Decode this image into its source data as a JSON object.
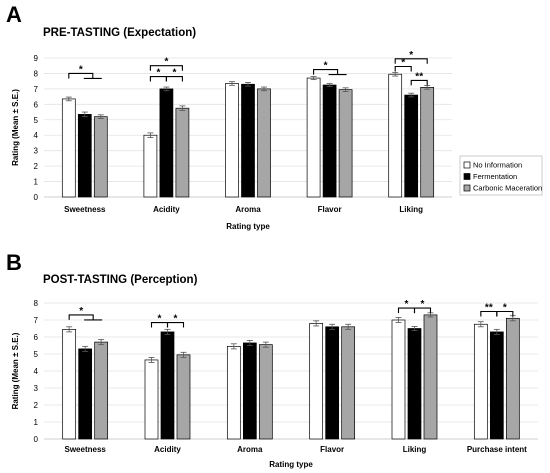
{
  "chart_data": [
    {
      "type": "bar",
      "panel_letter": "A",
      "title": "PRE-TASTING (Expectation)",
      "xlabel": "Rating type",
      "ylabel": "Rating (Mean ± S.E.)",
      "ylim": [
        0,
        9
      ],
      "yticks": [
        "0",
        "1",
        "2",
        "3",
        "4",
        "5",
        "6",
        "7",
        "8",
        "9"
      ],
      "grid": "horizontal",
      "legend": "right",
      "categories": [
        "Sweetness",
        "Acidity",
        "Aroma",
        "Flavor",
        "Liking"
      ],
      "series": [
        {
          "name": "No Information",
          "color": "#ffffff",
          "values": [
            6.35,
            4.0,
            7.35,
            7.7,
            7.95
          ],
          "errors": [
            0.12,
            0.15,
            0.12,
            0.1,
            0.12
          ]
        },
        {
          "name": "Fermentation",
          "color": "#000000",
          "values": [
            5.35,
            7.0,
            7.3,
            7.25,
            6.6
          ],
          "errors": [
            0.15,
            0.12,
            0.12,
            0.1,
            0.12
          ]
        },
        {
          "name": "Carbonic Maceration",
          "color": "#a6a6a6",
          "values": [
            5.2,
            5.75,
            7.0,
            6.95,
            7.1
          ],
          "errors": [
            0.12,
            0.15,
            0.12,
            0.12,
            0.12
          ]
        }
      ],
      "significance": [
        {
          "category": 0,
          "from": 0,
          "to": [
            1,
            2
          ],
          "label": "*",
          "level": 8.0
        },
        {
          "category": 1,
          "from": 0,
          "to": [
            1
          ],
          "label": "*",
          "level": 7.8
        },
        {
          "category": 1,
          "from": 1,
          "to": [
            2
          ],
          "label": "*",
          "level": 7.8
        },
        {
          "category": 1,
          "from": 0,
          "to": [
            2
          ],
          "label": "*",
          "level": 8.5
        },
        {
          "category": 3,
          "from": 0,
          "to": [
            1,
            2
          ],
          "label": "*",
          "level": 8.25
        },
        {
          "category": 4,
          "from": 0,
          "to": [
            1
          ],
          "label": "*",
          "level": 8.45
        },
        {
          "category": 4,
          "from": 1,
          "to": [
            2
          ],
          "label": "**",
          "level": 7.55
        },
        {
          "category": 4,
          "from": 0,
          "to": [
            2
          ],
          "label": "*",
          "level": 8.95
        }
      ]
    },
    {
      "type": "bar",
      "panel_letter": "B",
      "title": "POST-TASTING (Perception)",
      "xlabel": "Rating type",
      "ylabel": "Rating (Mean ± S.E.)",
      "ylim": [
        0,
        8
      ],
      "yticks": [
        "0",
        "1",
        "2",
        "3",
        "4",
        "5",
        "6",
        "7",
        "8"
      ],
      "grid": "horizontal",
      "legend": "none",
      "categories": [
        "Sweetness",
        "Acidity",
        "Aroma",
        "Flavor",
        "Liking",
        "Purchase intent"
      ],
      "series": [
        {
          "name": "No Information",
          "color": "#ffffff",
          "values": [
            6.45,
            4.65,
            5.45,
            6.8,
            7.0,
            6.75
          ],
          "errors": [
            0.15,
            0.15,
            0.15,
            0.15,
            0.15,
            0.15
          ]
        },
        {
          "name": "Fermentation",
          "color": "#000000",
          "values": [
            5.3,
            6.3,
            5.65,
            6.6,
            6.5,
            6.3
          ],
          "errors": [
            0.15,
            0.15,
            0.15,
            0.15,
            0.12,
            0.15
          ]
        },
        {
          "name": "Carbonic Maceration",
          "color": "#a6a6a6",
          "values": [
            5.7,
            4.95,
            5.55,
            6.6,
            7.3,
            7.1
          ],
          "errors": [
            0.15,
            0.15,
            0.15,
            0.15,
            0.12,
            0.15
          ]
        }
      ],
      "significance": [
        {
          "category": 0,
          "from": 0,
          "to": [
            1,
            2
          ],
          "label": "*",
          "level": 7.3
        },
        {
          "category": 1,
          "from": 0,
          "to": [
            1
          ],
          "label": "*",
          "level": 6.85
        },
        {
          "category": 1,
          "from": 1,
          "to": [
            2
          ],
          "label": "*",
          "level": 6.85
        },
        {
          "category": 4,
          "from": 0,
          "to": [
            1
          ],
          "label": "*",
          "level": 7.7
        },
        {
          "category": 4,
          "from": 1,
          "to": [
            2
          ],
          "label": "*",
          "level": 7.7
        },
        {
          "category": 5,
          "from": 0,
          "to": [
            1
          ],
          "label": "**",
          "level": 7.5
        },
        {
          "category": 5,
          "from": 1,
          "to": [
            2
          ],
          "label": "*",
          "level": 7.5
        }
      ]
    }
  ]
}
